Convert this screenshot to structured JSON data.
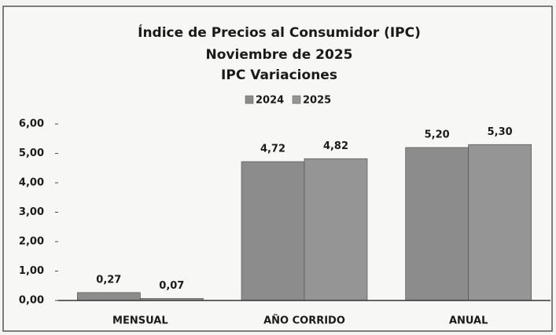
{
  "chart_data": {
    "type": "bar",
    "title_lines": [
      "Índice de Precios al Consumidor (IPC)",
      "Noviembre de 2025",
      "IPC Variaciones"
    ],
    "categories": [
      "MENSUAL",
      "AÑO CORRIDO",
      "ANUAL"
    ],
    "series": [
      {
        "name": "2024",
        "color": "#8c8c8c",
        "values": [
          0.27,
          4.72,
          5.2
        ],
        "value_labels": [
          "0,27",
          "4,72",
          "5,20"
        ]
      },
      {
        "name": "2025",
        "color": "#959595",
        "values": [
          0.07,
          4.82,
          5.3
        ],
        "value_labels": [
          "0,07",
          "4,82",
          "5,30"
        ]
      }
    ],
    "ylim": [
      0,
      6
    ],
    "yticks": [
      {
        "value": 0,
        "label": "0,00"
      },
      {
        "value": 1,
        "label": "1,00"
      },
      {
        "value": 2,
        "label": "2,00"
      },
      {
        "value": 3,
        "label": "3,00"
      },
      {
        "value": 4,
        "label": "4,00"
      },
      {
        "value": 5,
        "label": "5,00"
      },
      {
        "value": 6,
        "label": "6,00"
      }
    ],
    "grid": false,
    "legend": "top"
  }
}
